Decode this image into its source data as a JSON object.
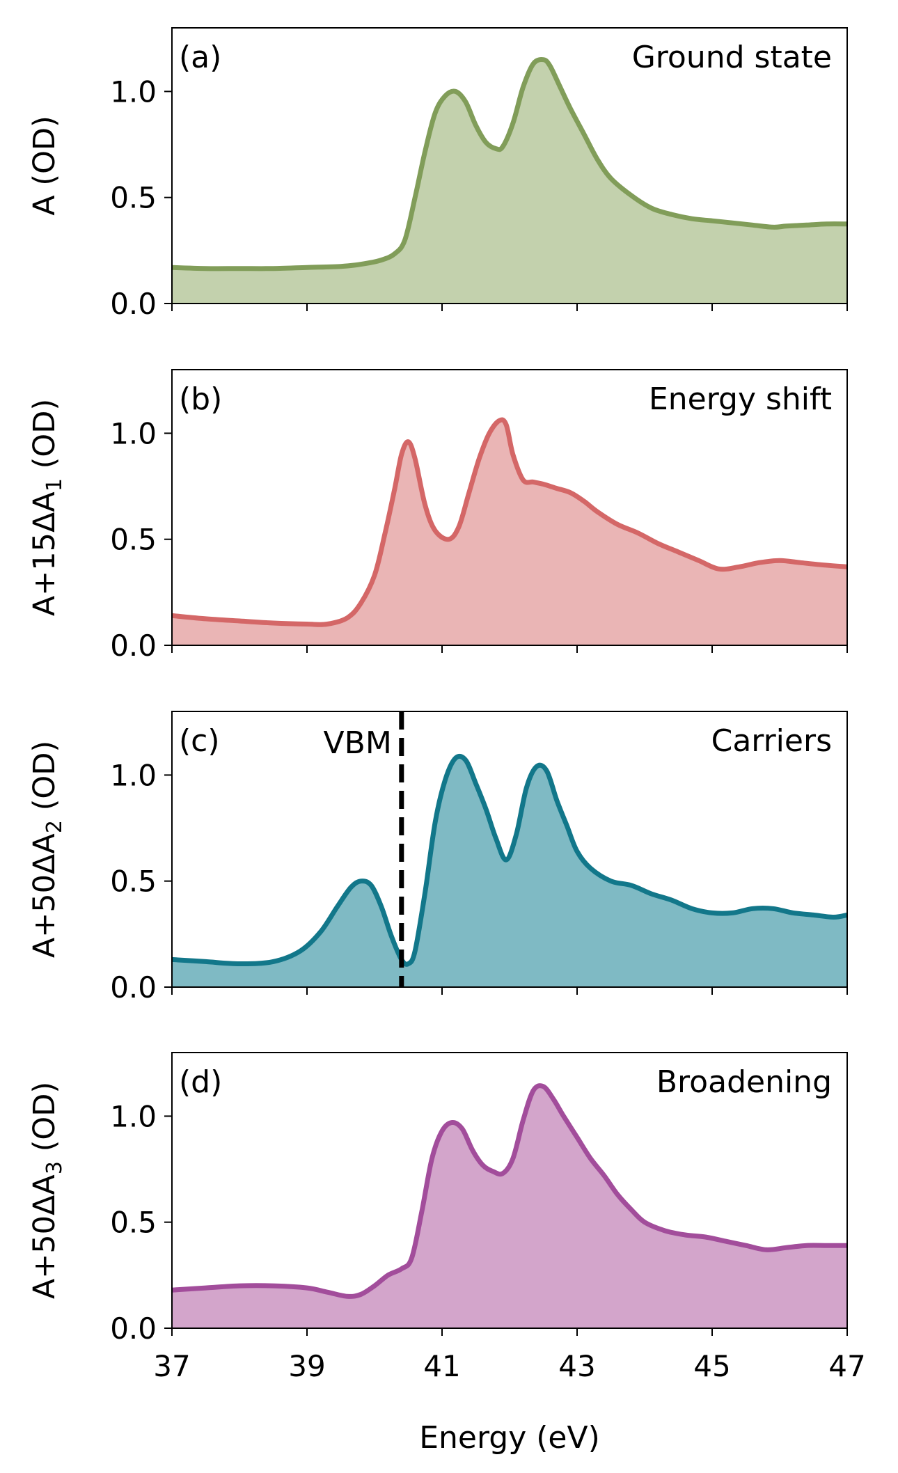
{
  "chart_data": {
    "type": "area",
    "xlabel": "Energy (eV)",
    "xlim": [
      37,
      47
    ],
    "x_ticks": [
      "37",
      "39",
      "41",
      "43",
      "45",
      "47"
    ],
    "x_tick_values": [
      37,
      39,
      41,
      43,
      45,
      47
    ],
    "shared_x": true,
    "panels": [
      {
        "id": "a",
        "tag": "(a)",
        "title": "Ground state",
        "ylabel": "A (OD)",
        "ylabel_subscript": "",
        "ylim": [
          0,
          1.3
        ],
        "y_ticks": [
          "0.0",
          "0.5",
          "1.0"
        ],
        "y_tick_values": [
          0,
          0.5,
          1.0
        ],
        "line_color": "#819d59",
        "fill_color": "#c3d1ad",
        "series": {
          "name": "Ground state",
          "x": [
            37,
            37.5,
            38,
            38.5,
            39,
            39.5,
            39.8,
            40.1,
            40.3,
            40.45,
            40.6,
            40.75,
            40.9,
            41.05,
            41.2,
            41.35,
            41.5,
            41.65,
            41.8,
            41.9,
            42.05,
            42.2,
            42.35,
            42.5,
            42.6,
            42.75,
            42.9,
            43.1,
            43.3,
            43.5,
            43.8,
            44.1,
            44.4,
            44.7,
            45,
            45.3,
            45.6,
            45.9,
            46.1,
            46.4,
            46.7,
            47
          ],
          "values": [
            0.17,
            0.165,
            0.165,
            0.165,
            0.17,
            0.175,
            0.185,
            0.205,
            0.235,
            0.3,
            0.5,
            0.72,
            0.9,
            0.98,
            1.0,
            0.95,
            0.84,
            0.76,
            0.73,
            0.74,
            0.85,
            1.02,
            1.13,
            1.15,
            1.12,
            1.02,
            0.92,
            0.8,
            0.68,
            0.59,
            0.51,
            0.45,
            0.42,
            0.4,
            0.39,
            0.38,
            0.37,
            0.36,
            0.365,
            0.37,
            0.375,
            0.375
          ]
        }
      },
      {
        "id": "b",
        "tag": "(b)",
        "title": "Energy shift",
        "ylabel": "A+15ΔA",
        "ylabel_subscript": "1",
        "ylabel_suffix": " (OD)",
        "ylim": [
          0,
          1.3
        ],
        "y_ticks": [
          "0.0",
          "0.5",
          "1.0"
        ],
        "y_tick_values": [
          0,
          0.5,
          1.0
        ],
        "line_color": "#d46767",
        "fill_color": "#eab5b5",
        "series": {
          "name": "Energy shift",
          "x": [
            37,
            37.5,
            38,
            38.5,
            39,
            39.3,
            39.6,
            39.8,
            40.0,
            40.15,
            40.3,
            40.4,
            40.5,
            40.6,
            40.75,
            40.9,
            41.1,
            41.25,
            41.4,
            41.55,
            41.7,
            41.85,
            41.95,
            42.05,
            42.2,
            42.35,
            42.5,
            42.7,
            42.9,
            43.1,
            43.3,
            43.6,
            43.9,
            44.2,
            44.5,
            44.8,
            45.1,
            45.4,
            45.7,
            46.0,
            46.3,
            46.6,
            47
          ],
          "values": [
            0.14,
            0.125,
            0.115,
            0.105,
            0.1,
            0.1,
            0.13,
            0.2,
            0.33,
            0.52,
            0.74,
            0.9,
            0.96,
            0.88,
            0.66,
            0.54,
            0.5,
            0.56,
            0.72,
            0.88,
            1.0,
            1.06,
            1.04,
            0.9,
            0.78,
            0.77,
            0.76,
            0.74,
            0.72,
            0.68,
            0.63,
            0.57,
            0.53,
            0.48,
            0.44,
            0.4,
            0.36,
            0.37,
            0.39,
            0.4,
            0.39,
            0.38,
            0.37
          ]
        }
      },
      {
        "id": "c",
        "tag": "(c)",
        "title": "Carriers",
        "ylabel": "A+50ΔA",
        "ylabel_subscript": "2",
        "ylabel_suffix": " (OD)",
        "ylim": [
          0,
          1.3
        ],
        "y_ticks": [
          "0.0",
          "0.5",
          "1.0"
        ],
        "y_tick_values": [
          0,
          0.5,
          1.0
        ],
        "line_color": "#12778a",
        "fill_color": "#7fbac4",
        "annotation": {
          "label": "VBM",
          "x": 40.4,
          "style": "dashed vertical line"
        },
        "series": {
          "name": "Carriers",
          "x": [
            37,
            37.5,
            38,
            38.5,
            38.9,
            39.2,
            39.45,
            39.65,
            39.8,
            39.95,
            40.1,
            40.25,
            40.4,
            40.5,
            40.6,
            40.75,
            40.9,
            41.05,
            41.2,
            41.35,
            41.5,
            41.65,
            41.8,
            41.95,
            42.1,
            42.25,
            42.4,
            42.55,
            42.7,
            42.85,
            43.0,
            43.2,
            43.5,
            43.8,
            44.1,
            44.4,
            44.7,
            45.0,
            45.3,
            45.6,
            45.9,
            46.2,
            46.5,
            46.8,
            47
          ],
          "values": [
            0.13,
            0.12,
            0.11,
            0.12,
            0.17,
            0.26,
            0.38,
            0.47,
            0.5,
            0.48,
            0.38,
            0.24,
            0.13,
            0.11,
            0.17,
            0.45,
            0.78,
            0.98,
            1.08,
            1.07,
            0.96,
            0.84,
            0.7,
            0.6,
            0.72,
            0.94,
            1.04,
            1.02,
            0.88,
            0.76,
            0.64,
            0.56,
            0.5,
            0.48,
            0.44,
            0.41,
            0.37,
            0.35,
            0.35,
            0.37,
            0.37,
            0.35,
            0.34,
            0.33,
            0.34
          ]
        }
      },
      {
        "id": "d",
        "tag": "(d)",
        "title": "Broadening",
        "ylabel": "A+50ΔA",
        "ylabel_subscript": "3",
        "ylabel_suffix": " (OD)",
        "ylim": [
          0,
          1.3
        ],
        "y_ticks": [
          "0.0",
          "0.5",
          "1.0"
        ],
        "y_tick_values": [
          0,
          0.5,
          1.0
        ],
        "line_color": "#a24d9b",
        "fill_color": "#d3a5cb",
        "series": {
          "name": "Broadening",
          "x": [
            37,
            37.5,
            38,
            38.5,
            39,
            39.3,
            39.6,
            39.8,
            40.0,
            40.2,
            40.4,
            40.55,
            40.7,
            40.85,
            41.0,
            41.15,
            41.3,
            41.45,
            41.6,
            41.75,
            41.9,
            42.05,
            42.2,
            42.35,
            42.5,
            42.65,
            42.8,
            43.0,
            43.2,
            43.4,
            43.6,
            43.8,
            44.0,
            44.3,
            44.6,
            44.9,
            45.2,
            45.5,
            45.8,
            46.1,
            46.4,
            46.7,
            47
          ],
          "values": [
            0.18,
            0.19,
            0.2,
            0.2,
            0.19,
            0.17,
            0.15,
            0.16,
            0.2,
            0.25,
            0.28,
            0.33,
            0.55,
            0.8,
            0.93,
            0.97,
            0.94,
            0.84,
            0.77,
            0.74,
            0.73,
            0.8,
            0.98,
            1.12,
            1.14,
            1.08,
            1.0,
            0.9,
            0.8,
            0.72,
            0.63,
            0.56,
            0.5,
            0.46,
            0.44,
            0.43,
            0.41,
            0.39,
            0.37,
            0.38,
            0.39,
            0.39,
            0.39
          ]
        }
      }
    ]
  }
}
